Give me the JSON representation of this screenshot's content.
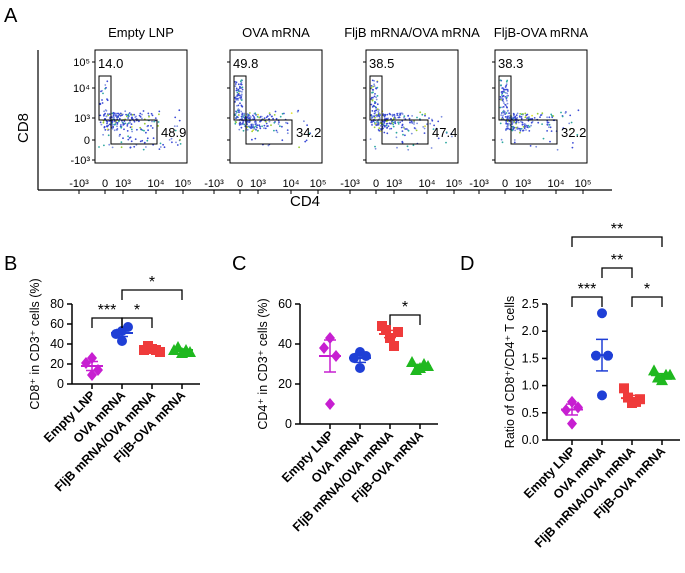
{
  "panels": {
    "A": "A",
    "B": "B",
    "C": "C",
    "D": "D"
  },
  "colors": {
    "empty": "#c71fd1",
    "ova": "#1f3fd6",
    "fljb_ova": "#ef3b3b",
    "fusion": "#1fb81f",
    "axis": "#000000"
  },
  "flow": {
    "xlabel": "CD4",
    "ylabel": "CD8",
    "x_ticks": [
      "-10³",
      "0",
      "10³",
      "10⁴",
      "10⁵"
    ],
    "y_ticks": [
      "10⁵",
      "10⁴",
      "10³",
      "0",
      "-10³"
    ],
    "plots": [
      {
        "title": "Empty LNP",
        "cd8_gate": "14.0",
        "cd4_gate": "48.9"
      },
      {
        "title": "OVA mRNA",
        "cd8_gate": "49.8",
        "cd4_gate": "34.2"
      },
      {
        "title": "FljB mRNA/OVA mRNA",
        "cd8_gate": "38.5",
        "cd4_gate": "47.4"
      },
      {
        "title": "FljB-OVA mRNA",
        "cd8_gate": "38.3",
        "cd4_gate": "32.2"
      }
    ]
  },
  "chart_data": [
    {
      "type": "scatter",
      "panel": "B",
      "categories": [
        "Empty LNP",
        "OVA mRNA",
        "FljB mRNA/OVA mRNA",
        "FljB-OVA mRNA"
      ],
      "ylabel": "CD8⁺ in CD3⁺ cells (%)",
      "ylim": [
        0,
        80
      ],
      "y_ticks": [
        "0",
        "20",
        "40",
        "60",
        "80"
      ],
      "points": [
        [
          26,
          21,
          14,
          9
        ],
        [
          53,
          50,
          57,
          43
        ],
        [
          34,
          32,
          38,
          34,
          35
        ],
        [
          34,
          32,
          37,
          34,
          31
        ]
      ],
      "means": [
        18,
        51,
        35,
        34
      ],
      "errors": [
        4.5,
        3.5,
        1.6,
        1.1
      ],
      "significance": [
        {
          "from": 0,
          "to": 1,
          "label": "***"
        },
        {
          "from": 1,
          "to": 2,
          "label": "*"
        },
        {
          "from": 1,
          "to": 3,
          "label": "*"
        }
      ]
    },
    {
      "type": "scatter",
      "panel": "C",
      "categories": [
        "Empty LNP",
        "OVA mRNA",
        "FljB mRNA/OVA mRNA",
        "FljB-OVA mRNA"
      ],
      "ylabel": "CD4⁺ in CD3⁺ cells (%)",
      "ylim": [
        0,
        60
      ],
      "y_ticks": [
        "0",
        "20",
        "40",
        "60"
      ],
      "points": [
        [
          43,
          38,
          34,
          10
        ],
        [
          36,
          33,
          34,
          28
        ],
        [
          49,
          46,
          47,
          39,
          43
        ],
        [
          31,
          29,
          27,
          30,
          28
        ]
      ],
      "means": [
        34,
        33,
        45,
        29
      ],
      "errors": [
        8,
        2.2,
        1.8,
        0.8
      ],
      "significance": [
        {
          "from": 2,
          "to": 3,
          "label": "*"
        }
      ]
    },
    {
      "type": "scatter",
      "panel": "D",
      "categories": [
        "Empty LNP",
        "OVA mRNA",
        "FljB mRNA/OVA mRNA",
        "FljB-OVA mRNA"
      ],
      "ylabel": "Ratio of CD8⁺/CD4⁺ T cells",
      "ylim": [
        0,
        2.5
      ],
      "y_ticks": [
        "0.0",
        "0.5",
        "1.0",
        "1.5",
        "2.0",
        "2.5"
      ],
      "points": [
        [
          0.7,
          0.55,
          0.6,
          0.3
        ],
        [
          2.33,
          1.55,
          1.55,
          0.82
        ],
        [
          0.95,
          0.75,
          0.78,
          0.7,
          0.68
        ],
        [
          1.28,
          1.2,
          1.15,
          1.2,
          1.1
        ]
      ],
      "means": [
        0.56,
        1.56,
        0.77,
        1.19
      ],
      "errors": [
        0.1,
        0.29,
        0.05,
        0.03
      ],
      "significance": [
        {
          "from": 0,
          "to": 1,
          "label": "***"
        },
        {
          "from": 1,
          "to": 2,
          "label": "**"
        },
        {
          "from": 2,
          "to": 3,
          "label": "*"
        },
        {
          "from": 0,
          "to": 3,
          "label": "**"
        }
      ]
    }
  ]
}
